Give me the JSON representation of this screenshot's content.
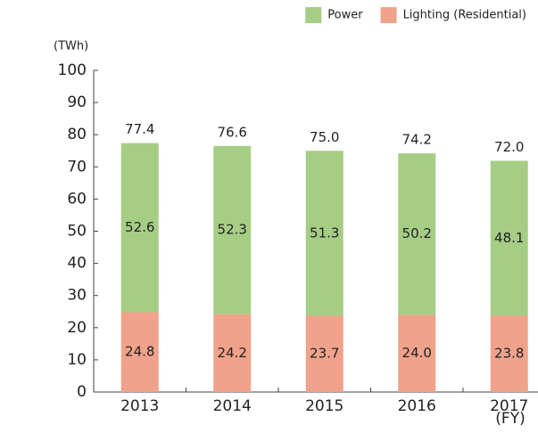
{
  "chart_data": {
    "type": "bar",
    "stacked": true,
    "y_label": "(TWh)",
    "x_label": "(FY)",
    "categories": [
      "2013",
      "2014",
      "2015",
      "2016",
      "2017"
    ],
    "series": [
      {
        "name": "Lighting (Residential)",
        "color": "#f0a28b",
        "values": [
          24.8,
          24.2,
          23.7,
          24.0,
          23.8
        ],
        "value_labels": [
          "24.8",
          "24.2",
          "23.7",
          "24.0",
          "23.8"
        ]
      },
      {
        "name": "Power",
        "color": "#a6cd84",
        "values": [
          52.6,
          52.3,
          51.3,
          50.2,
          48.1
        ],
        "value_labels": [
          "52.6",
          "52.3",
          "51.3",
          "50.2",
          "48.1"
        ]
      }
    ],
    "totals": [
      77.4,
      76.6,
      75.0,
      74.2,
      72.0
    ],
    "total_labels": [
      "77.4",
      "76.6",
      "75.0",
      "74.2",
      "72.0"
    ],
    "ylim": [
      0,
      100
    ],
    "yticks": [
      0,
      10,
      20,
      30,
      40,
      50,
      60,
      70,
      80,
      90,
      100
    ],
    "legend": "top-right"
  }
}
